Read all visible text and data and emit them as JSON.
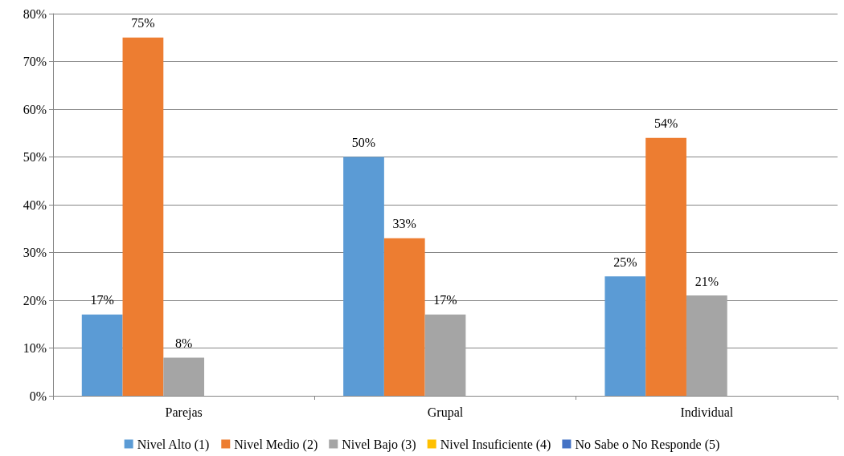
{
  "chart_data": {
    "type": "bar",
    "categories": [
      "Parejas",
      "Grupal",
      "Individual"
    ],
    "series": [
      {
        "name": "Nivel Alto (1)",
        "color": "#5b9bd5",
        "values": [
          17,
          50,
          25
        ],
        "value_labels": [
          "17%",
          "50%",
          "25%"
        ]
      },
      {
        "name": "Nivel Medio (2)",
        "color": "#ed7d31",
        "values": [
          75,
          33,
          54
        ],
        "value_labels": [
          "75%",
          "33%",
          "54%"
        ]
      },
      {
        "name": "Nivel Bajo (3)",
        "color": "#a5a5a5",
        "values": [
          8,
          17,
          21
        ],
        "value_labels": [
          "8%",
          "17%",
          "21%"
        ]
      },
      {
        "name": "Nivel Insuficiente (4)",
        "color": "#ffc000",
        "values": [
          null,
          null,
          null
        ]
      },
      {
        "name": "No Sabe o No Responde (5)",
        "color": "#4472c4",
        "values": [
          null,
          null,
          null
        ]
      }
    ],
    "ylim": [
      0,
      80
    ],
    "yticks": [
      {
        "value": 0,
        "label": "0%"
      },
      {
        "value": 10,
        "label": "10%"
      },
      {
        "value": 20,
        "label": "20%"
      },
      {
        "value": 30,
        "label": "30%"
      },
      {
        "value": 40,
        "label": "40%"
      },
      {
        "value": 50,
        "label": "50%"
      },
      {
        "value": 60,
        "label": "60%"
      },
      {
        "value": 70,
        "label": "70%"
      },
      {
        "value": 80,
        "label": "80%"
      }
    ],
    "grid": "y",
    "legend": "bottom"
  }
}
